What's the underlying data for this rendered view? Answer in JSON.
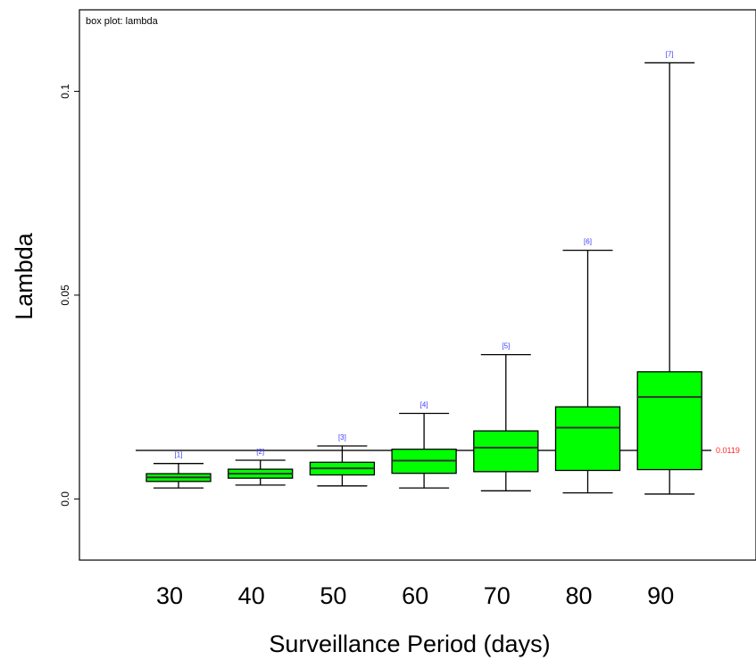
{
  "chart_data": {
    "type": "box",
    "title": "box plot: lambda",
    "xlabel": "Surveillance Period (days)",
    "ylabel": "Lambda",
    "ylim": [
      -0.015,
      0.12
    ],
    "yticks": [
      "0.0",
      "0.05",
      "0.1"
    ],
    "ytick_values": [
      0.0,
      0.05,
      0.1
    ],
    "grid": false,
    "colors": {
      "box_fill": "#00ff00",
      "reference_line": "#555555",
      "reference_label": "#ff2a2a",
      "count_label": "#3b3bff"
    },
    "reference_line": {
      "value": 0.0119,
      "label": "0.0119"
    },
    "categories": [
      "30",
      "40",
      "50",
      "60",
      "70",
      "80",
      "90"
    ],
    "boxes": [
      {
        "label": "30",
        "count_label": "[1]",
        "whisker_low": 0.0027,
        "q1": 0.0043,
        "median": 0.0053,
        "q3": 0.0062,
        "whisker_high": 0.0087
      },
      {
        "label": "40",
        "count_label": "[2]",
        "whisker_low": 0.0034,
        "q1": 0.0051,
        "median": 0.0062,
        "q3": 0.0073,
        "whisker_high": 0.0095
      },
      {
        "label": "50",
        "count_label": "[3]",
        "whisker_low": 0.0032,
        "q1": 0.0059,
        "median": 0.0075,
        "q3": 0.009,
        "whisker_high": 0.013
      },
      {
        "label": "60",
        "count_label": "[4]",
        "whisker_low": 0.0027,
        "q1": 0.0063,
        "median": 0.0094,
        "q3": 0.0122,
        "whisker_high": 0.021
      },
      {
        "label": "70",
        "count_label": "[5]",
        "whisker_low": 0.002,
        "q1": 0.0067,
        "median": 0.0126,
        "q3": 0.0167,
        "whisker_high": 0.0354
      },
      {
        "label": "80",
        "count_label": "[6]",
        "whisker_low": 0.0015,
        "q1": 0.007,
        "median": 0.0175,
        "q3": 0.0226,
        "whisker_high": 0.061
      },
      {
        "label": "90",
        "count_label": "[7]",
        "whisker_low": 0.0012,
        "q1": 0.0072,
        "median": 0.025,
        "q3": 0.0312,
        "whisker_high": 0.107
      }
    ]
  }
}
